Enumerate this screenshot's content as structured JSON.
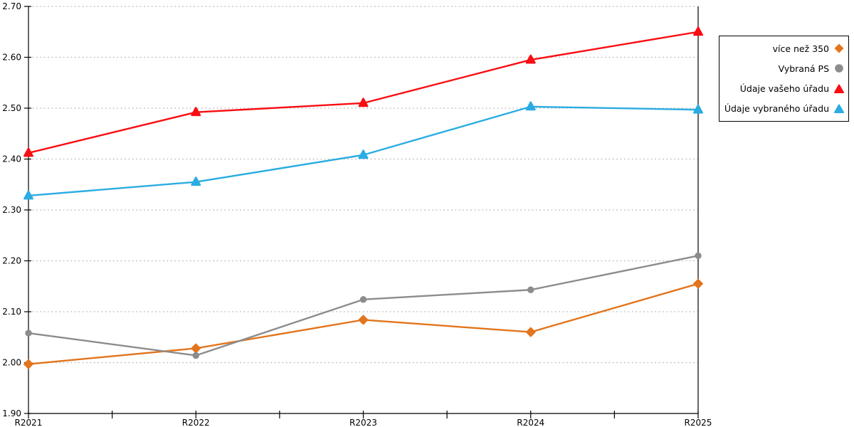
{
  "chart_data": {
    "type": "line",
    "title": "",
    "xlabel": "",
    "ylabel": "",
    "categories": [
      "R2021",
      "R2022",
      "R2023",
      "R2024",
      "R2025"
    ],
    "series": [
      {
        "name": "více než 350",
        "color": "#E2751D",
        "marker": "diamond",
        "values": [
          1.997,
          2.028,
          2.084,
          2.06,
          2.155
        ]
      },
      {
        "name": "Vybraná PS",
        "color": "#8C8C8C",
        "marker": "circle",
        "values": [
          2.058,
          2.014,
          2.124,
          2.143,
          2.21
        ]
      },
      {
        "name": "Údaje vašeho úřadu",
        "color": "#F90D12",
        "marker": "triangle",
        "values": [
          2.412,
          2.492,
          2.51,
          2.595,
          2.65
        ]
      },
      {
        "name": "Údaje vybraného úřadu",
        "color": "#2BACE2",
        "marker": "triangle",
        "values": [
          2.328,
          2.355,
          2.408,
          2.503,
          2.497
        ]
      }
    ],
    "ylim": [
      1.9,
      2.7
    ],
    "y_tick_step": 0.1,
    "y_tick_labels": [
      "1.90",
      "2.00",
      "2.10",
      "2.20",
      "2.30",
      "2.40",
      "2.50",
      "2.60",
      "2.70"
    ],
    "x_minor_ticks_between_categories": true,
    "grid": "horizontal-dotted",
    "legend_position": "outside-right"
  },
  "colors": {
    "axis": "#000000",
    "grid": "#b9b9b9",
    "background": "#ffffff",
    "legend_border": "#000000"
  }
}
